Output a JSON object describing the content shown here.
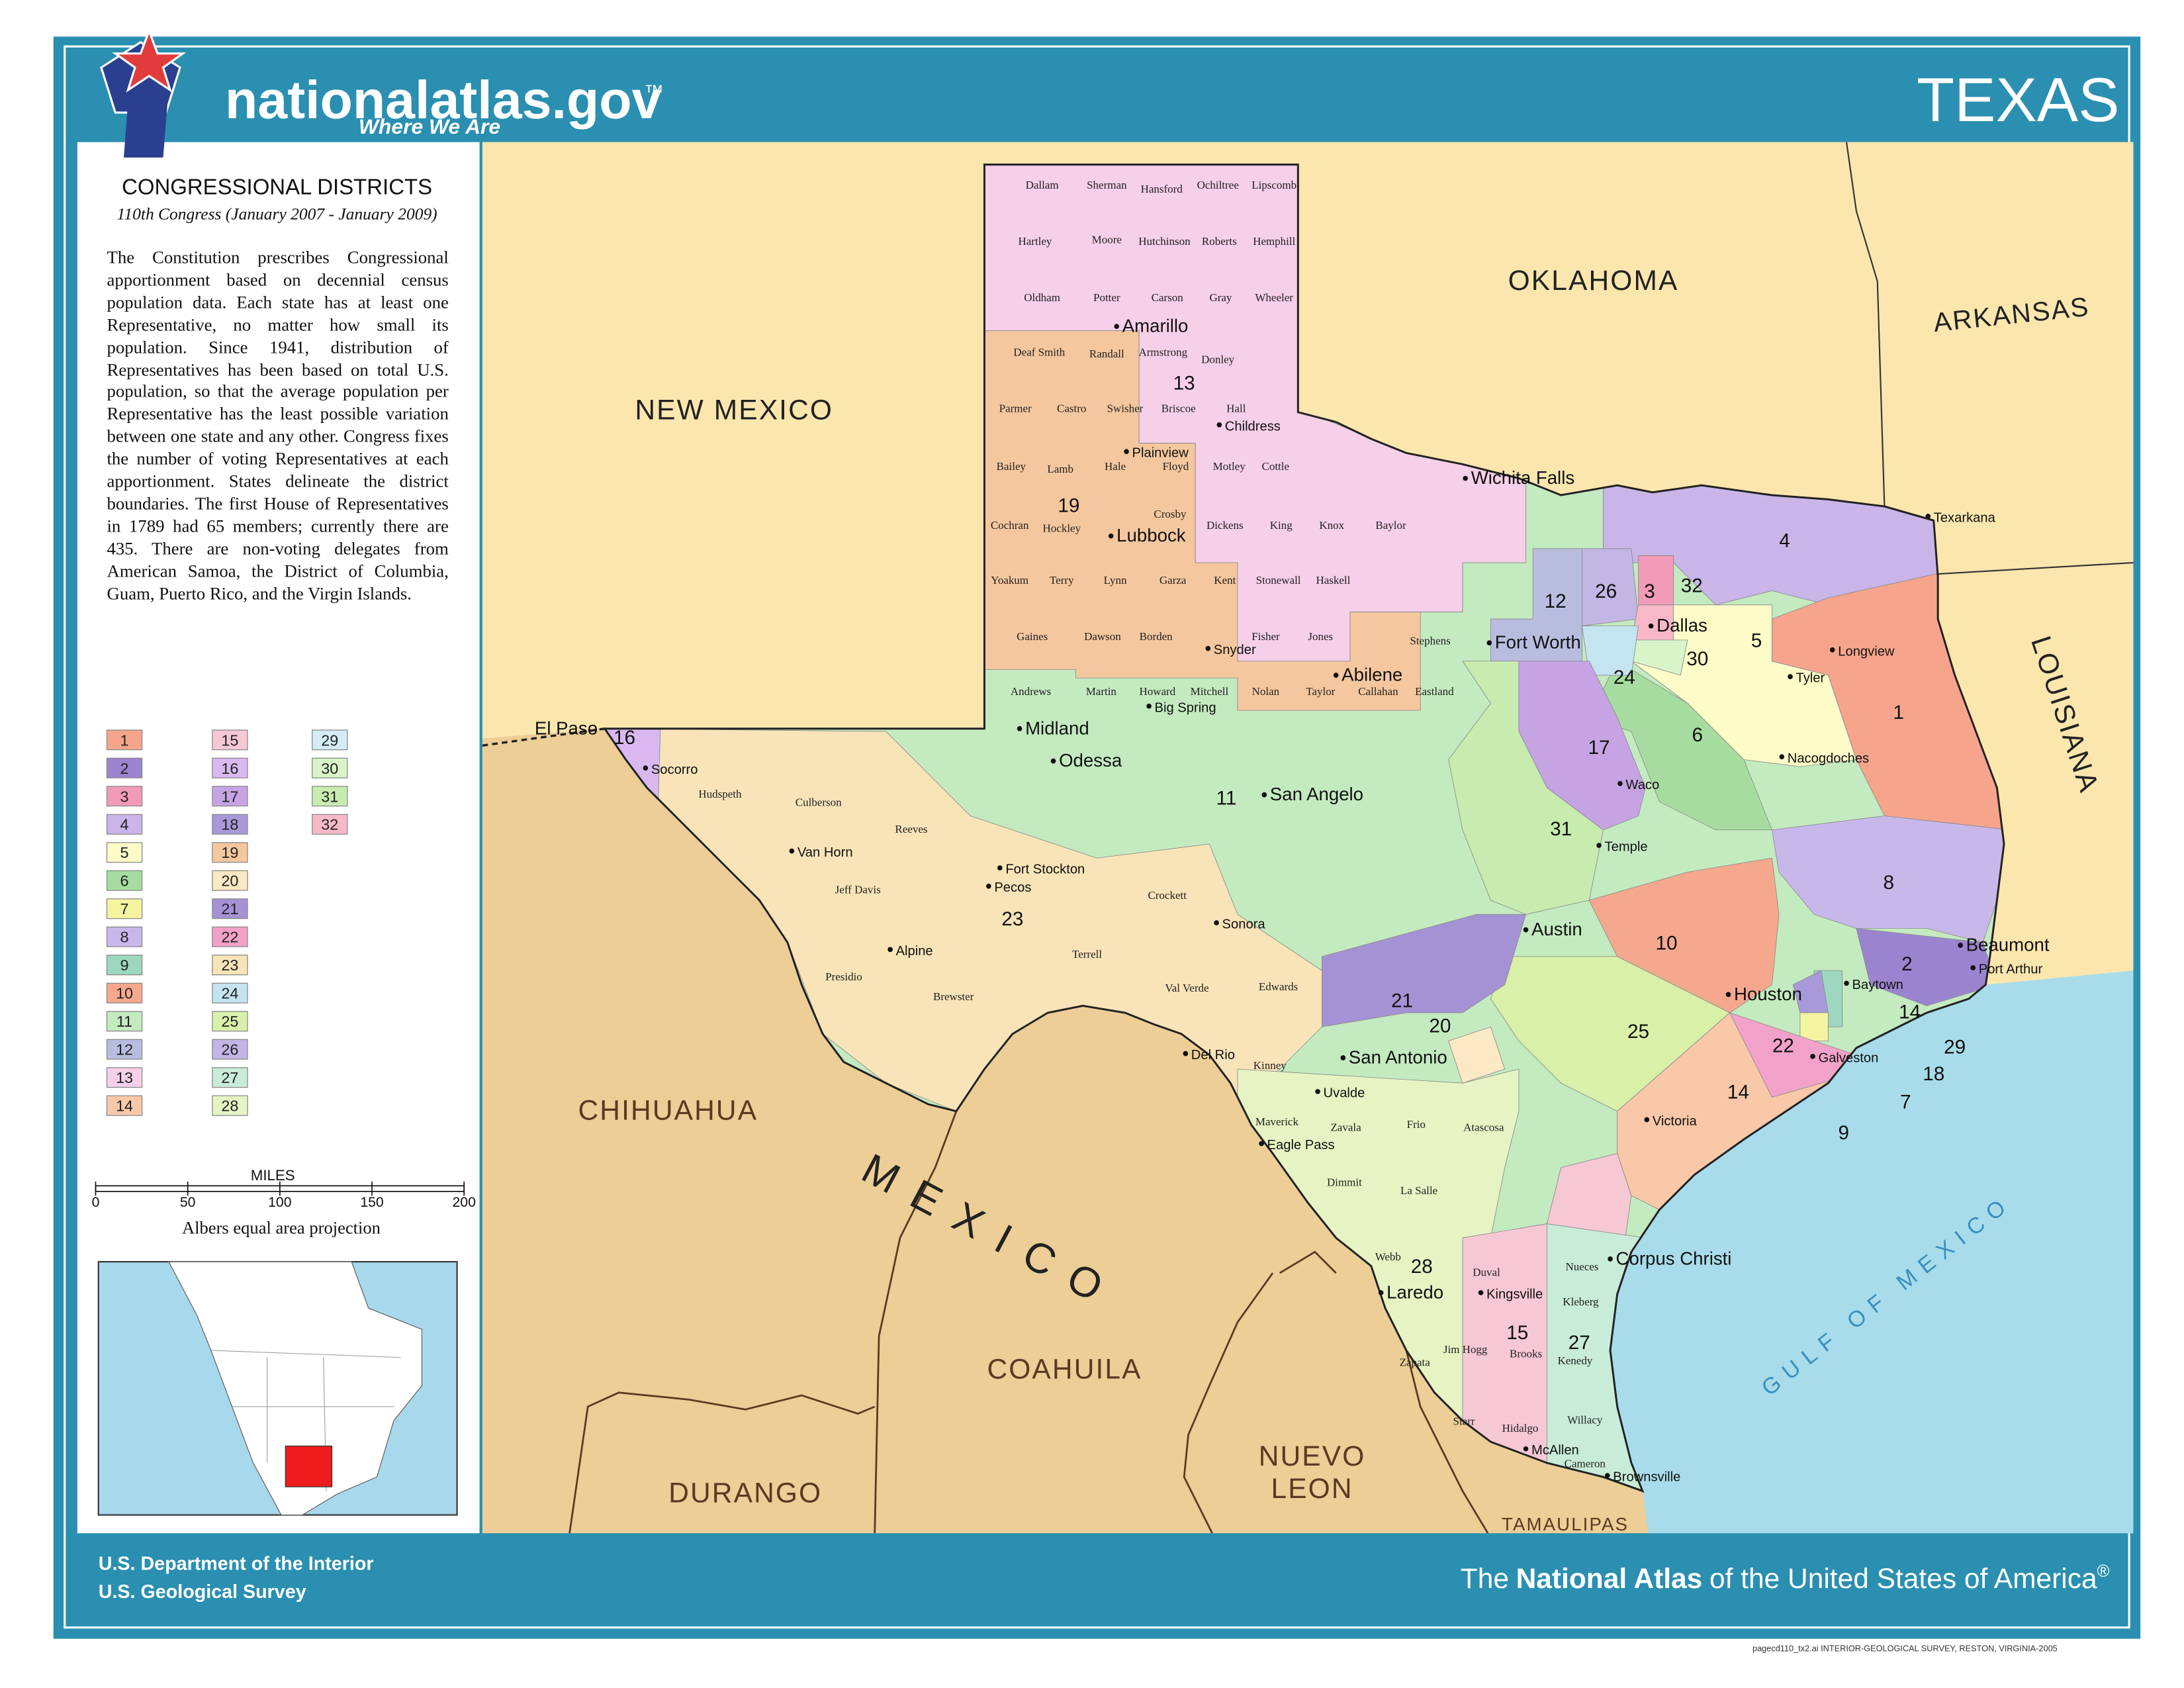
{
  "header": {
    "site": "nationalatlas.gov",
    "trademark": "™",
    "tagline": "Where We Are",
    "state": "TEXAS"
  },
  "panel": {
    "title": "CONGRESSIONAL DISTRICTS",
    "subtitle": "110th Congress (January 2007 - January 2009)",
    "text": "The Constitution prescribes Congressional apportionment based on decennial census population data. Each state has at least one Representative, no matter how small its population. Since 1941, distribution of Representatives has been based on total U.S. population, so that the average population per Representative has the least possible variation between one state and any other. Congress fixes the number of voting Representatives at each apportionment. States delineate the district boundaries. The first House of Representatives in 1789 had 65 members; currently there are 435. There are non-voting delegates from American Samoa, the District of Columbia, Guam, Puerto Rico, and the Virgin Islands."
  },
  "districts": [
    {
      "number": 1,
      "color": "#f6a58c"
    },
    {
      "number": 2,
      "color": "#9b84cf"
    },
    {
      "number": 3,
      "color": "#f29bb8"
    },
    {
      "number": 4,
      "color": "#c9b5e8"
    },
    {
      "number": 5,
      "color": "#fdfbc8"
    },
    {
      "number": 6,
      "color": "#a6dca0"
    },
    {
      "number": 7,
      "color": "#f4f4a0"
    },
    {
      "number": 8,
      "color": "#c8b8ea"
    },
    {
      "number": 9,
      "color": "#9ed7c0"
    },
    {
      "number": 10,
      "color": "#f6a88e"
    },
    {
      "number": 11,
      "color": "#c4eac0"
    },
    {
      "number": 12,
      "color": "#b8bde0"
    },
    {
      "number": 13,
      "color": "#f6cfe8"
    },
    {
      "number": 14,
      "color": "#f8c8a8"
    },
    {
      "number": 15,
      "color": "#f6c8d4"
    },
    {
      "number": 16,
      "color": "#d9b8f0"
    },
    {
      "number": 17,
      "color": "#c6a4e4"
    },
    {
      "number": 18,
      "color": "#a89ad8"
    },
    {
      "number": 19,
      "color": "#f5c79e"
    },
    {
      "number": 20,
      "color": "#fbe8c4"
    },
    {
      "number": 21,
      "color": "#a592d4"
    },
    {
      "number": 22,
      "color": "#f2a2c8"
    },
    {
      "number": 23,
      "color": "#f8e4b8"
    },
    {
      "number": 24,
      "color": "#c4e4f0"
    },
    {
      "number": 25,
      "color": "#d8f0a8"
    },
    {
      "number": 26,
      "color": "#c2b6e4"
    },
    {
      "number": 27,
      "color": "#c8ecd8"
    },
    {
      "number": 28,
      "color": "#e6f4c4"
    },
    {
      "number": 29,
      "color": "#d4ecf4"
    },
    {
      "number": 30,
      "color": "#d8f4c8"
    },
    {
      "number": 31,
      "color": "#c8ecb0"
    },
    {
      "number": 32,
      "color": "#f8b8c8"
    }
  ],
  "scale": {
    "unit": "MILES",
    "ticks": [
      0,
      50,
      100,
      150,
      200
    ],
    "projection": "Albers equal area projection"
  },
  "regions": [
    "NEW MEXICO",
    "OKLAHOMA",
    "ARKANSAS",
    "LOUISIANA",
    "CHIHUAHUA",
    "COAHUILA",
    "DURANGO",
    "NUEVO",
    "LEON",
    "TAMAULIPAS",
    "MEXICO",
    "GULF OF MEXICO"
  ],
  "cities": [
    "El Paso",
    "Socorro",
    "Van Horn",
    "Fort Stockton",
    "Pecos",
    "Alpine",
    "Midland",
    "Odessa",
    "Big Spring",
    "Snyder",
    "Abilene",
    "Lubbock",
    "Plainview",
    "Amarillo",
    "Childress",
    "Wichita Falls",
    "Fort Worth",
    "Dallas",
    "Texarkana",
    "Tyler",
    "Longview",
    "Nacogdoches",
    "Waco",
    "Temple",
    "Austin",
    "San Angelo",
    "Sonora",
    "Del Rio",
    "Uvalde",
    "Eagle Pass",
    "San Antonio",
    "Laredo",
    "Corpus Christi",
    "Kingsville",
    "McAllen",
    "Brownsville",
    "Victoria",
    "Houston",
    "Galveston",
    "Beaumont",
    "Port Arthur",
    "Baytown"
  ],
  "counties": [
    "Dallam",
    "Sherman",
    "Hansford",
    "Ochiltree",
    "Lipscomb",
    "Hartley",
    "Moore",
    "Hutchinson",
    "Roberts",
    "Hemphill",
    "Oldham",
    "Potter",
    "Carson",
    "Gray",
    "Wheeler",
    "Deaf Smith",
    "Randall",
    "Armstrong",
    "Donley",
    "Parmer",
    "Castro",
    "Swisher",
    "Briscoe",
    "Hall",
    "Bailey",
    "Lamb",
    "Hale",
    "Floyd",
    "Motley",
    "Cottle",
    "Cochran",
    "Hockley",
    "Crosby",
    "Dickens",
    "King",
    "Knox",
    "Baylor",
    "Yoakum",
    "Terry",
    "Lynn",
    "Garza",
    "Kent",
    "Stonewall",
    "Haskell",
    "Gaines",
    "Dawson",
    "Borden",
    "Fisher",
    "Jones",
    "Stephens",
    "Andrews",
    "Martin",
    "Howard",
    "Mitchell",
    "Nolan",
    "Taylor",
    "Callahan",
    "Eastland",
    "Hudspeth",
    "Culberson",
    "Reeves",
    "Jeff Davis",
    "Presidio",
    "Brewster",
    "Terrell",
    "Crockett",
    "Val Verde",
    "Edwards",
    "Kinney",
    "Maverick",
    "Zavala",
    "Frio",
    "Atascosa",
    "Dimmit",
    "La Salle",
    "Webb",
    "Zapata",
    "Jim Hogg",
    "Starr",
    "Duval",
    "Brooks",
    "Kenedy",
    "Kleberg",
    "Nueces",
    "Hidalgo",
    "Willacy",
    "Cameron"
  ],
  "map_district_numbers": [
    13,
    19,
    16,
    23,
    11,
    12,
    26,
    3,
    32,
    4,
    30,
    24,
    17,
    6,
    5,
    1,
    31,
    8,
    2,
    10,
    21,
    20,
    25,
    22,
    14,
    14,
    29,
    18,
    7,
    9,
    28,
    15,
    27
  ],
  "footer": {
    "agency": "U.S. Department of the Interior",
    "survey": "U.S. Geological Survey",
    "credit": [
      "The",
      "National Atlas",
      "of the United States of America",
      "®"
    ],
    "file": "pagecd110_tx2.ai  INTERIOR-GEOLOGICAL SURVEY, RESTON, VIRGINIA-2005"
  }
}
